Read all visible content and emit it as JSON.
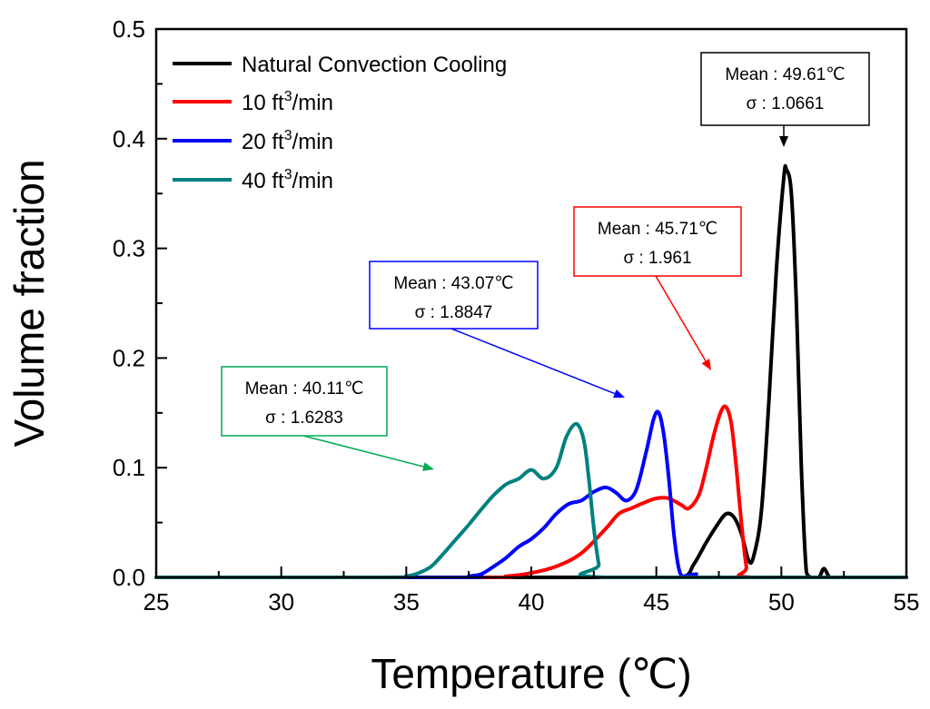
{
  "chart_data": {
    "type": "line",
    "xlabel": "Temperature (℃)",
    "ylabel": "Volume fraction",
    "xlim": [
      25,
      55
    ],
    "ylim": [
      0.0,
      0.5
    ],
    "xticks": [
      "25",
      "30",
      "35",
      "40",
      "45",
      "50",
      "55"
    ],
    "yticks": [
      "0.0",
      "0.1",
      "0.2",
      "0.3",
      "0.4",
      "0.5"
    ],
    "grid": false,
    "legend_position": "top-left",
    "series": [
      {
        "name": "Natural Convection Cooling",
        "legend_label": "Natural Convection Cooling",
        "legend_sup": "",
        "legend_suffix": "",
        "color": "#000000",
        "points": [
          [
            25,
            0
          ],
          [
            44,
            0
          ],
          [
            46,
            0
          ],
          [
            46.5,
            0.012
          ],
          [
            47,
            0.032
          ],
          [
            47.5,
            0.05
          ],
          [
            47.8,
            0.058
          ],
          [
            48.1,
            0.055
          ],
          [
            48.4,
            0.04
          ],
          [
            48.7,
            0.015
          ],
          [
            48.9,
            0.02
          ],
          [
            49.2,
            0.06
          ],
          [
            49.5,
            0.16
          ],
          [
            49.8,
            0.28
          ],
          [
            50.1,
            0.365
          ],
          [
            50.2,
            0.372
          ],
          [
            50.4,
            0.35
          ],
          [
            50.6,
            0.25
          ],
          [
            50.8,
            0.1
          ],
          [
            51.0,
            0.005
          ],
          [
            51.2,
            0
          ],
          [
            51.5,
            0
          ],
          [
            51.7,
            0.008
          ],
          [
            51.9,
            0.001
          ],
          [
            52.1,
            0
          ],
          [
            55,
            0
          ]
        ],
        "annotation": {
          "mean_text": "Mean : 49.61℃",
          "sigma_text": "σ : 1.0661"
        }
      },
      {
        "name": "10 ft3/min",
        "legend_label": "10 ft",
        "legend_sup": "3",
        "legend_suffix": "/min",
        "color": "#ff0000",
        "points": [
          [
            25,
            0
          ],
          [
            38,
            0
          ],
          [
            39,
            0.001
          ],
          [
            40,
            0.004
          ],
          [
            41,
            0.01
          ],
          [
            42,
            0.022
          ],
          [
            43,
            0.045
          ],
          [
            43.5,
            0.058
          ],
          [
            44,
            0.063
          ],
          [
            44.5,
            0.068
          ],
          [
            45,
            0.072
          ],
          [
            45.5,
            0.072
          ],
          [
            46,
            0.066
          ],
          [
            46.3,
            0.063
          ],
          [
            46.7,
            0.075
          ],
          [
            47.0,
            0.1
          ],
          [
            47.3,
            0.13
          ],
          [
            47.6,
            0.152
          ],
          [
            47.8,
            0.155
          ],
          [
            48.0,
            0.14
          ],
          [
            48.2,
            0.1
          ],
          [
            48.4,
            0.05
          ],
          [
            48.6,
            0.01
          ],
          [
            48.8,
            0
          ],
          [
            55,
            0
          ]
        ],
        "annotation": {
          "mean_text": "Mean : 45.71℃",
          "sigma_text": "σ : 1.961"
        }
      },
      {
        "name": "20 ft3/min",
        "legend_label": "20 ft",
        "legend_sup": "3",
        "legend_suffix": "/min",
        "color": "#0000ff",
        "points": [
          [
            25,
            0
          ],
          [
            37,
            0
          ],
          [
            37.5,
            0.001
          ],
          [
            38,
            0.003
          ],
          [
            38.5,
            0.01
          ],
          [
            39,
            0.018
          ],
          [
            39.5,
            0.028
          ],
          [
            40,
            0.035
          ],
          [
            40.5,
            0.045
          ],
          [
            41,
            0.058
          ],
          [
            41.5,
            0.067
          ],
          [
            42,
            0.07
          ],
          [
            42.5,
            0.078
          ],
          [
            43,
            0.082
          ],
          [
            43.4,
            0.077
          ],
          [
            43.8,
            0.07
          ],
          [
            44.2,
            0.08
          ],
          [
            44.6,
            0.115
          ],
          [
            44.9,
            0.145
          ],
          [
            45.1,
            0.15
          ],
          [
            45.3,
            0.13
          ],
          [
            45.5,
            0.09
          ],
          [
            45.7,
            0.04
          ],
          [
            45.9,
            0.008
          ],
          [
            46.1,
            0
          ],
          [
            46.4,
            0
          ],
          [
            46.6,
            0.003
          ],
          [
            46.8,
            0
          ],
          [
            55,
            0
          ]
        ],
        "annotation": {
          "mean_text": "Mean : 43.07℃",
          "sigma_text": "σ : 1.8847"
        }
      },
      {
        "name": "40 ft3/min",
        "legend_label": "40 ft",
        "legend_sup": "3",
        "legend_suffix": "/min",
        "color": "#008080",
        "points": [
          [
            25,
            0
          ],
          [
            34,
            0
          ],
          [
            35,
            0.001
          ],
          [
            35.5,
            0.004
          ],
          [
            36,
            0.01
          ],
          [
            36.5,
            0.022
          ],
          [
            37,
            0.035
          ],
          [
            37.5,
            0.048
          ],
          [
            38,
            0.062
          ],
          [
            38.5,
            0.075
          ],
          [
            39,
            0.085
          ],
          [
            39.5,
            0.09
          ],
          [
            40,
            0.098
          ],
          [
            40.5,
            0.09
          ],
          [
            41,
            0.1
          ],
          [
            41.4,
            0.128
          ],
          [
            41.8,
            0.14
          ],
          [
            42.1,
            0.125
          ],
          [
            42.3,
            0.09
          ],
          [
            42.5,
            0.045
          ],
          [
            42.7,
            0.012
          ],
          [
            42.9,
            0
          ],
          [
            55,
            0
          ]
        ],
        "annotation": {
          "mean_text": "Mean : 40.11℃",
          "sigma_text": "σ : 1.6283"
        }
      }
    ]
  }
}
